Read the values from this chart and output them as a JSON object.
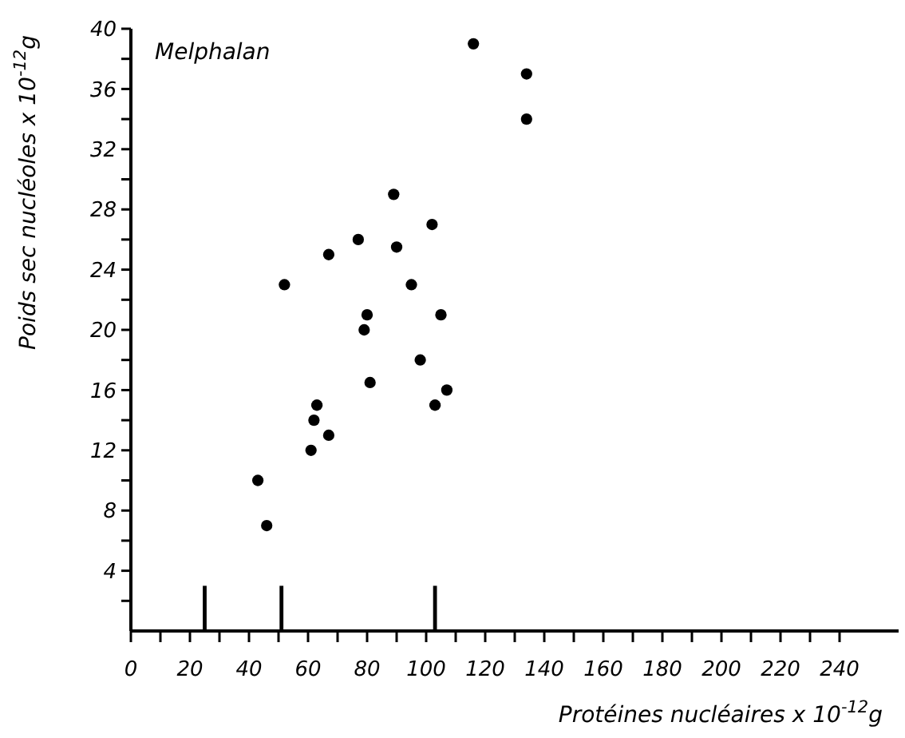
{
  "chart_data": {
    "type": "scatter",
    "title": "Melphalan",
    "xlabel": "Protéines nucléaires x 10$^{-12}$g",
    "ylabel": "Poids sec nucléoles x 10$^{-12}$g",
    "xlim": [
      0,
      260
    ],
    "ylim": [
      0,
      40
    ],
    "xticks": [
      0,
      {
        "value": 10,
        "label": null
      },
      20,
      {
        "value": 30,
        "label": null
      },
      40,
      {
        "value": 50,
        "label": null
      },
      60,
      {
        "value": 70,
        "label": null
      },
      80,
      {
        "value": 90,
        "label": null
      },
      100,
      {
        "value": 110,
        "label": null
      },
      120,
      {
        "value": 130,
        "label": null
      },
      140,
      {
        "value": 150,
        "label": null
      },
      160,
      {
        "value": 170,
        "label": null
      },
      180,
      {
        "value": 190,
        "label": null
      },
      200,
      {
        "value": 210,
        "label": null
      },
      220,
      {
        "value": 230,
        "label": null
      },
      240
    ],
    "yticks": [
      {
        "value": 2,
        "label": null
      },
      4,
      {
        "value": 6,
        "label": null
      },
      8,
      {
        "value": 10,
        "label": null
      },
      12,
      {
        "value": 14,
        "label": null
      },
      16,
      {
        "value": 18,
        "label": null
      },
      20,
      {
        "value": 22,
        "label": null
      },
      24,
      {
        "value": 26,
        "label": null
      },
      28,
      {
        "value": 30,
        "label": null
      },
      32,
      {
        "value": 34,
        "label": null
      },
      36,
      {
        "value": 38,
        "label": null
      },
      40
    ],
    "grid": false,
    "marker": "circle",
    "series": [
      {
        "type": "bar",
        "color": "#000000",
        "x": [
          25,
          51,
          103
        ],
        "values": [
          3,
          3,
          3
        ]
      },
      {
        "color": "#000000",
        "x": [
          116,
          134,
          134,
          89,
          102,
          77,
          90,
          67,
          52,
          95,
          80,
          105,
          79,
          98,
          81,
          107,
          103,
          63,
          62,
          67,
          61,
          43,
          46
        ],
        "values": [
          39,
          37,
          34,
          29,
          27,
          26,
          25.5,
          25,
          23,
          23,
          21,
          21,
          20,
          18,
          16.5,
          16,
          15,
          15,
          14,
          13,
          12,
          10,
          7
        ]
      }
    ]
  }
}
